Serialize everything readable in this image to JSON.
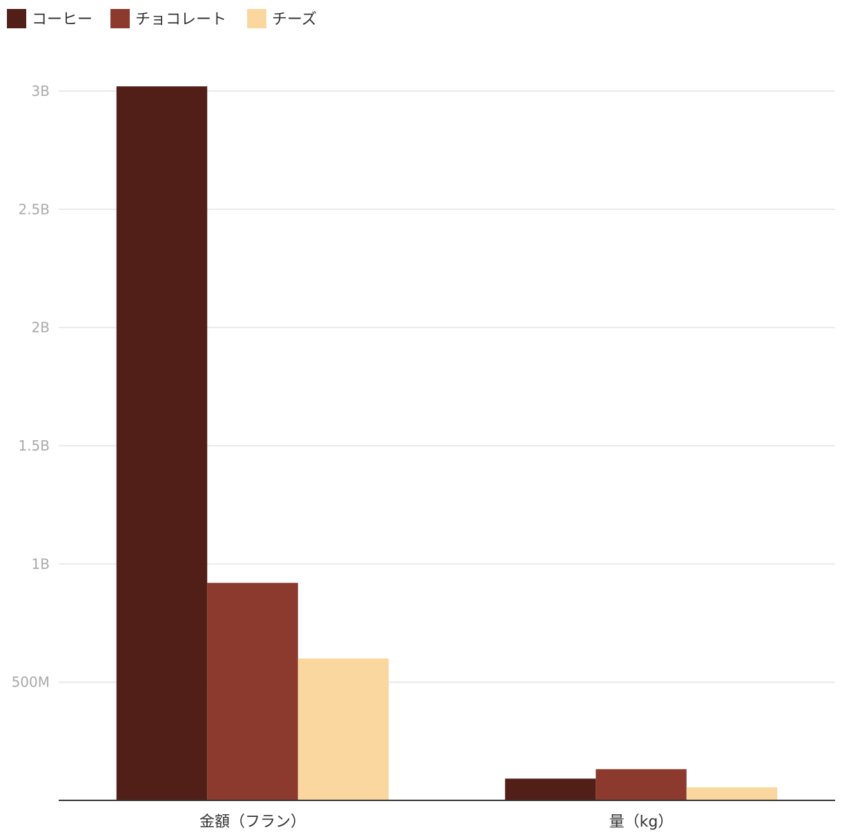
{
  "chart_data": {
    "type": "bar",
    "title": "",
    "xlabel": "",
    "ylabel": "",
    "categories": [
      "金額（フラン）",
      "量（kg）"
    ],
    "series": [
      {
        "name": "コーヒー",
        "color": "#511f18",
        "values": [
          3020000000,
          92000000
        ]
      },
      {
        "name": "チョコレート",
        "color": "#8b3a2d",
        "values": [
          920000000,
          132000000
        ]
      },
      {
        "name": "チーズ",
        "color": "#fbd7a0",
        "values": [
          600000000,
          55000000
        ]
      }
    ],
    "ylim": [
      0,
      3000000000
    ],
    "yticks": [
      500000000,
      1000000000,
      1500000000,
      2000000000,
      2500000000,
      3000000000
    ],
    "ytick_labels": [
      "500M",
      "1B",
      "1.5B",
      "2B",
      "2.5B",
      "3B"
    ],
    "grid": true,
    "legend_position": "top-left"
  }
}
